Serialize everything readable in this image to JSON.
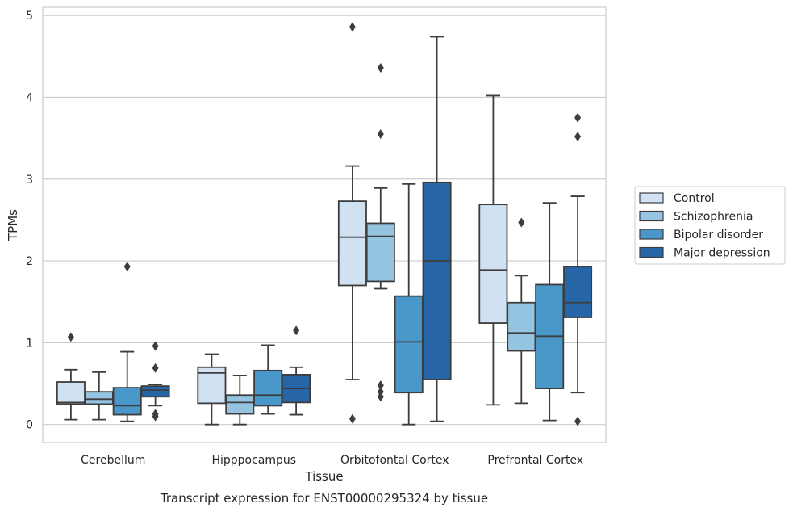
{
  "chart_data": {
    "type": "boxplot",
    "caption": "Transcript expression for ENST00000295324 by tissue",
    "xlabel": "Tissue",
    "ylabel": "TPMs",
    "ylim": [
      -0.22,
      5.1
    ],
    "yticks": [
      0,
      1,
      2,
      3,
      4,
      5
    ],
    "grid": true,
    "legend_position": "right",
    "categories": [
      "Cerebellum",
      "Hipppocampus",
      "Orbitofontal Cortex",
      "Prefrontal Cortex"
    ],
    "series": [
      {
        "name": "Control",
        "color": "#d0e1f2",
        "boxes": [
          {
            "q1": 0.25,
            "median": 0.27,
            "q3": 0.52,
            "whislo": 0.06,
            "whishi": 0.67,
            "fliers": [
              1.07
            ]
          },
          {
            "q1": 0.26,
            "median": 0.63,
            "q3": 0.7,
            "whislo": 0.0,
            "whishi": 0.86,
            "fliers": []
          },
          {
            "q1": 1.7,
            "median": 2.29,
            "q3": 2.73,
            "whislo": 0.55,
            "whishi": 3.16,
            "fliers": [
              4.86,
              0.07
            ]
          },
          {
            "q1": 1.24,
            "median": 1.89,
            "q3": 2.69,
            "whislo": 0.24,
            "whishi": 4.02,
            "fliers": []
          }
        ]
      },
      {
        "name": "Schizophrenia",
        "color": "#94c4df",
        "boxes": [
          {
            "q1": 0.25,
            "median": 0.31,
            "q3": 0.4,
            "whislo": 0.06,
            "whishi": 0.64,
            "fliers": []
          },
          {
            "q1": 0.13,
            "median": 0.27,
            "q3": 0.36,
            "whislo": 0.0,
            "whishi": 0.6,
            "fliers": []
          },
          {
            "q1": 1.75,
            "median": 2.3,
            "q3": 2.46,
            "whislo": 1.66,
            "whishi": 2.89,
            "fliers": [
              4.36,
              3.55,
              0.48,
              0.4,
              0.34
            ]
          },
          {
            "q1": 0.9,
            "median": 1.12,
            "q3": 1.49,
            "whislo": 0.26,
            "whishi": 1.82,
            "fliers": [
              2.47
            ]
          }
        ]
      },
      {
        "name": "Bipolar disorder",
        "color": "#4a98c9",
        "boxes": [
          {
            "q1": 0.12,
            "median": 0.23,
            "q3": 0.45,
            "whislo": 0.04,
            "whishi": 0.89,
            "fliers": [
              1.93
            ]
          },
          {
            "q1": 0.23,
            "median": 0.36,
            "q3": 0.66,
            "whislo": 0.13,
            "whishi": 0.97,
            "fliers": []
          },
          {
            "q1": 0.39,
            "median": 1.01,
            "q3": 1.57,
            "whislo": 0.0,
            "whishi": 2.94,
            "fliers": []
          },
          {
            "q1": 0.44,
            "median": 1.08,
            "q3": 1.71,
            "whislo": 0.05,
            "whishi": 2.71,
            "fliers": []
          }
        ]
      },
      {
        "name": "Major depression",
        "color": "#2666a7",
        "boxes": [
          {
            "q1": 0.34,
            "median": 0.42,
            "q3": 0.47,
            "whislo": 0.23,
            "whishi": 0.49,
            "fliers": [
              0.96,
              0.69,
              0.13,
              0.1
            ]
          },
          {
            "q1": 0.27,
            "median": 0.44,
            "q3": 0.61,
            "whislo": 0.12,
            "whishi": 0.7,
            "fliers": [
              1.15
            ]
          },
          {
            "q1": 0.55,
            "median": 2.0,
            "q3": 2.96,
            "whislo": 0.04,
            "whishi": 4.74,
            "fliers": []
          },
          {
            "q1": 1.31,
            "median": 1.49,
            "q3": 1.93,
            "whislo": 0.39,
            "whishi": 2.79,
            "fliers": [
              3.75,
              3.52,
              0.04
            ]
          }
        ]
      }
    ]
  }
}
